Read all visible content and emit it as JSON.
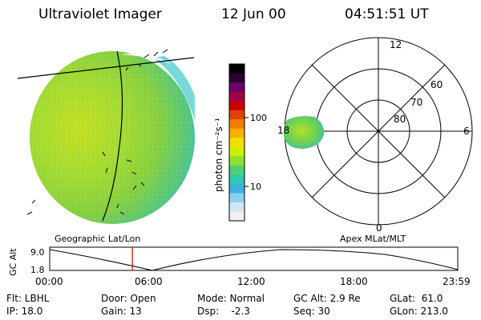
{
  "header": {
    "title": "Ultraviolet Imager",
    "date": "12 Jun 00",
    "time": "04:51:51 UT"
  },
  "colorbar": {
    "unit_label": "photon cm⁻²s⁻¹",
    "ticks": [
      "100",
      "10"
    ],
    "colors": [
      "#000000",
      "#2a0030",
      "#6a006a",
      "#a0004a",
      "#c80000",
      "#e04000",
      "#f08000",
      "#f8b000",
      "#f0e000",
      "#c8f000",
      "#90e030",
      "#50d070",
      "#30c8b0",
      "#40b0e0",
      "#8ad0f0",
      "#cfe8f0",
      "#f0f0f0"
    ]
  },
  "polar": {
    "mlt_labels": [
      "12",
      "6",
      "0",
      "18"
    ],
    "lat_labels": [
      "60",
      "70",
      "80"
    ]
  },
  "timeline": {
    "left_title": "Geographic Lat/Lon",
    "right_title": "Apex MLat/MLT",
    "axis_label": "GC Alt",
    "y_ticks": [
      "9.0",
      "1.8"
    ],
    "x_ticks": [
      "00:00",
      "06:00",
      "12:00",
      "18:00",
      "23:59"
    ],
    "current_time_fraction": 0.2026
  },
  "info": {
    "flt": "Flt: LBHL",
    "ip": "IP: 18.0",
    "door": "Door: Open",
    "gain": "Gain: 13",
    "mode": "Mode: Normal",
    "dsp": "Dsp:    -2.3",
    "gcalt": "GC Alt: 2.9 Re",
    "seq": "Seq: 30",
    "glat": "GLat:  61.0",
    "glon": "GLon: 213.0"
  }
}
